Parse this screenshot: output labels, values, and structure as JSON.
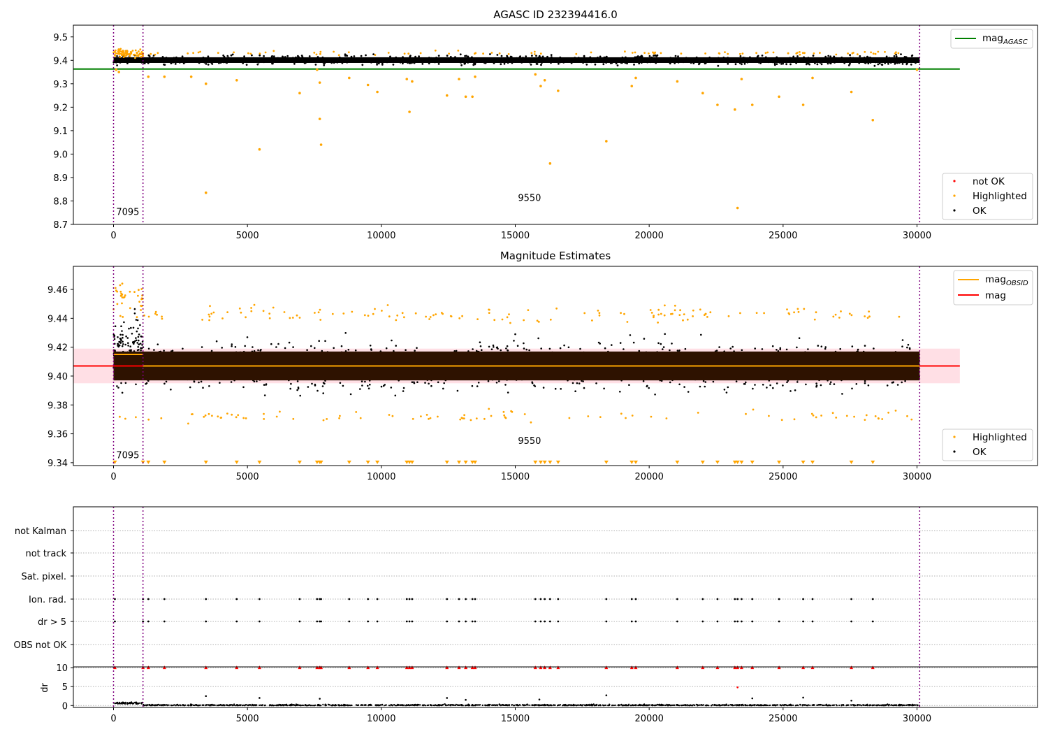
{
  "figure": {
    "background": "#ffffff",
    "colors": {
      "ok": "#000000",
      "highlighted": "#ffa500",
      "not_ok": "#ff0000",
      "agasc_line": "#008000",
      "mag_line": "#ff0000",
      "obsid_line": "#ffa500",
      "obsid_boundary": "#800080",
      "band": "#ffc0cb",
      "dense_band": "#2e1200"
    }
  },
  "chart_data": [
    {
      "type": "scatter",
      "title": "AGASC ID 232394416.0",
      "xlim": [
        -1500,
        34500
      ],
      "ylim": [
        8.7,
        9.55
      ],
      "xticks": [
        0,
        5000,
        10000,
        15000,
        20000,
        25000,
        30000
      ],
      "yticks": [
        8.7,
        8.8,
        8.9,
        9.0,
        9.1,
        9.2,
        9.3,
        9.4,
        9.5
      ],
      "yticklabels": [
        "8.7",
        "8.8",
        "8.9",
        "9.0",
        "9.1",
        "9.2",
        "9.3",
        "9.4",
        "9.5"
      ],
      "obsid_boundaries": [
        0,
        1100,
        30100
      ],
      "obsid_labels": [
        {
          "text": "7095",
          "x": 100,
          "y": 8.74
        },
        {
          "text": "9550",
          "x": 15100,
          "y": 8.8
        }
      ],
      "hlines": [
        {
          "y": 9.363,
          "x": [
            -1500,
            31600
          ],
          "color": "#008000",
          "label": "mag_AGASC"
        }
      ],
      "ok_band": {
        "y_center": 9.401,
        "y_half": 0.012,
        "x": [
          0,
          30100
        ]
      },
      "highlighted_points": [
        [
          100,
          9.36
        ],
        [
          200,
          9.35
        ],
        [
          500,
          9.44
        ],
        [
          1300,
          9.33
        ],
        [
          1900,
          9.33
        ],
        [
          2900,
          9.33
        ],
        [
          3450,
          9.3
        ],
        [
          3450,
          8.835
        ],
        [
          4600,
          9.315
        ],
        [
          5450,
          9.02
        ],
        [
          6950,
          9.26
        ],
        [
          7600,
          9.36
        ],
        [
          7700,
          9.305
        ],
        [
          7700,
          9.15
        ],
        [
          7750,
          9.04
        ],
        [
          8800,
          9.325
        ],
        [
          9500,
          9.295
        ],
        [
          9850,
          9.265
        ],
        [
          10950,
          9.32
        ],
        [
          11050,
          9.18
        ],
        [
          11150,
          9.31
        ],
        [
          12450,
          9.25
        ],
        [
          12900,
          9.32
        ],
        [
          13150,
          9.245
        ],
        [
          13400,
          9.245
        ],
        [
          13500,
          9.33
        ],
        [
          15750,
          9.34
        ],
        [
          15950,
          9.29
        ],
        [
          16100,
          9.315
        ],
        [
          16300,
          8.96
        ],
        [
          16600,
          9.27
        ],
        [
          18400,
          9.055
        ],
        [
          19350,
          9.29
        ],
        [
          19500,
          9.325
        ],
        [
          21050,
          9.31
        ],
        [
          22000,
          9.26
        ],
        [
          22550,
          9.21
        ],
        [
          23200,
          9.19
        ],
        [
          23300,
          8.77
        ],
        [
          23450,
          9.32
        ],
        [
          23850,
          9.21
        ],
        [
          24850,
          9.245
        ],
        [
          25750,
          9.21
        ],
        [
          26100,
          9.325
        ],
        [
          27550,
          9.265
        ],
        [
          28350,
          9.145
        ],
        [
          30000,
          9.36
        ]
      ],
      "legend": [
        {
          "label": "mag",
          "sub": "AGASC",
          "kind": "line",
          "color": "#008000",
          "position": "upper right"
        },
        {
          "label": "not OK",
          "kind": "dot",
          "color": "#ff0000",
          "position": "lower right"
        },
        {
          "label": "Highlighted",
          "kind": "dot",
          "color": "#ffa500",
          "position": "lower right"
        },
        {
          "label": "OK",
          "kind": "dot",
          "color": "#000000",
          "position": "lower right"
        }
      ]
    },
    {
      "type": "scatter",
      "title": "Magnitude Estimates",
      "xlim": [
        -1500,
        34500
      ],
      "ylim": [
        9.338,
        9.476
      ],
      "xticks": [
        0,
        5000,
        10000,
        15000,
        20000,
        25000,
        30000
      ],
      "yticks": [
        9.34,
        9.36,
        9.38,
        9.4,
        9.42,
        9.44,
        9.46
      ],
      "yticklabels": [
        "9.34",
        "9.36",
        "9.38",
        "9.40",
        "9.42",
        "9.44",
        "9.46"
      ],
      "obsid_boundaries": [
        0,
        1100,
        30100
      ],
      "obsid_labels": [
        {
          "text": "7095",
          "x": 100,
          "y": 9.343
        },
        {
          "text": "9550",
          "x": 15100,
          "y": 9.353
        }
      ],
      "mag": 9.407,
      "mag_band": [
        9.395,
        9.419
      ],
      "obsid_means": [
        {
          "x": [
            0,
            1100
          ],
          "y": 9.415
        },
        {
          "x": [
            1100,
            30100
          ],
          "y": 9.407
        }
      ],
      "dense_core": [
        9.397,
        9.417
      ],
      "ok_spread": [
        9.375,
        9.44
      ],
      "highlighted_clip_y": 9.34,
      "legend": [
        {
          "label": "mag",
          "sub": "OBSID",
          "kind": "line",
          "color": "#ffa500",
          "position": "upper right"
        },
        {
          "label": "mag",
          "kind": "line",
          "color": "#ff0000",
          "position": "upper right"
        },
        {
          "label": "Highlighted",
          "kind": "dot",
          "color": "#ffa500",
          "position": "lower right"
        },
        {
          "label": "OK",
          "kind": "dot",
          "color": "#000000",
          "position": "lower right"
        }
      ]
    },
    {
      "type": "scatter",
      "title": "",
      "xlim": [
        -1500,
        34500
      ],
      "categories": [
        "not Kalman",
        "not track",
        "Sat. pixel.",
        "Ion. rad.",
        "dr > 5",
        "OBS not OK"
      ],
      "flagged_categories": [
        "Ion. rad.",
        "dr > 5"
      ],
      "flag_times": [
        50,
        1100,
        1300,
        1900,
        3450,
        4600,
        5450,
        6950,
        7600,
        7700,
        7750,
        8800,
        9500,
        9850,
        10950,
        11050,
        11150,
        12450,
        12900,
        13150,
        13400,
        13500,
        15750,
        15950,
        16100,
        16300,
        16600,
        18400,
        19350,
        19500,
        21050,
        22000,
        22550,
        23200,
        23300,
        23450,
        23850,
        24850,
        25750,
        26100,
        27550,
        28350
      ],
      "obsid_boundaries": [
        0,
        1100,
        30100
      ]
    },
    {
      "type": "scatter",
      "title": "",
      "ylabel": "dr",
      "xlim": [
        -1500,
        34500
      ],
      "ylim": [
        -0.5,
        10.2
      ],
      "xticks": [
        0,
        5000,
        10000,
        15000,
        20000,
        25000,
        30000
      ],
      "yticks": [
        0,
        5,
        10
      ],
      "obsid_boundaries": [
        0,
        1100,
        30100
      ],
      "clipped_dr": 10,
      "outliers": [
        [
          3450,
          2.5
        ],
        [
          5450,
          2.0
        ],
        [
          7700,
          1.8
        ],
        [
          12450,
          2.0
        ],
        [
          13150,
          1.5
        ],
        [
          15900,
          1.6
        ],
        [
          18400,
          2.7
        ],
        [
          23300,
          4.8
        ],
        [
          23850,
          1.9
        ],
        [
          25750,
          2.1
        ],
        [
          27550,
          1.3
        ]
      ]
    }
  ]
}
